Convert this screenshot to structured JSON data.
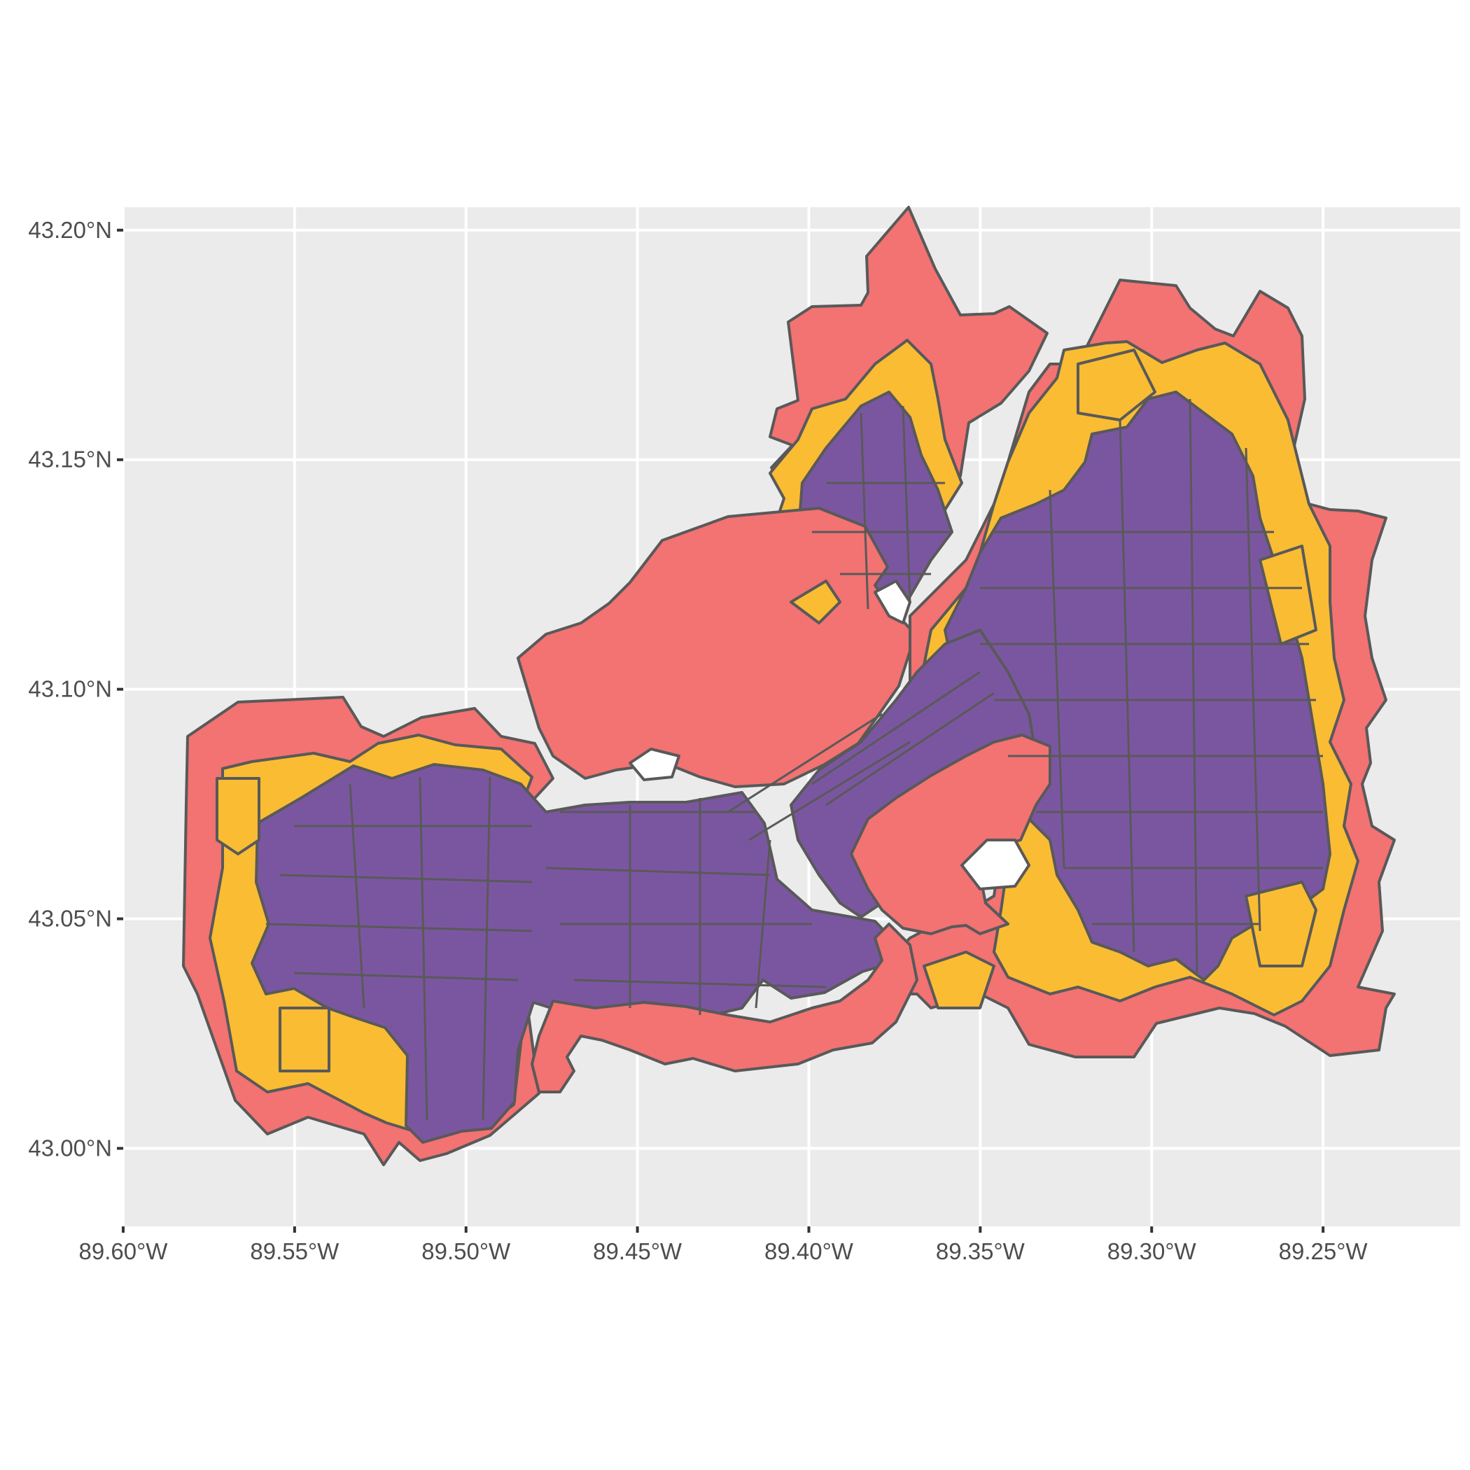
{
  "map": {
    "type": "choropleth",
    "extent": {
      "lon": [
        -89.6,
        -89.21
      ],
      "lat": [
        42.983,
        43.205
      ]
    },
    "background_color": "#ebebeb",
    "grid_color": "#ffffff",
    "border_color": "#595959",
    "category_colors": {
      "outer": "#f37272",
      "mid": "#f9bc33",
      "core": "#7b56a0"
    },
    "water_color": "#ffffff",
    "x_ticks": [
      {
        "value": -89.6,
        "label": "89.60°W"
      },
      {
        "value": -89.55,
        "label": "89.55°W"
      },
      {
        "value": -89.5,
        "label": "89.50°W"
      },
      {
        "value": -89.45,
        "label": "89.45°W"
      },
      {
        "value": -89.4,
        "label": "89.40°W"
      },
      {
        "value": -89.35,
        "label": "89.35°W"
      },
      {
        "value": -89.3,
        "label": "89.30°W"
      },
      {
        "value": -89.25,
        "label": "89.25°W"
      }
    ],
    "y_ticks": [
      {
        "value": 43.2,
        "label": "43.20°N"
      },
      {
        "value": 43.15,
        "label": "43.15°N"
      },
      {
        "value": 43.1,
        "label": "43.10°N"
      },
      {
        "value": 43.05,
        "label": "43.05°N"
      },
      {
        "value": 43.0,
        "label": "43.00°N"
      }
    ]
  }
}
